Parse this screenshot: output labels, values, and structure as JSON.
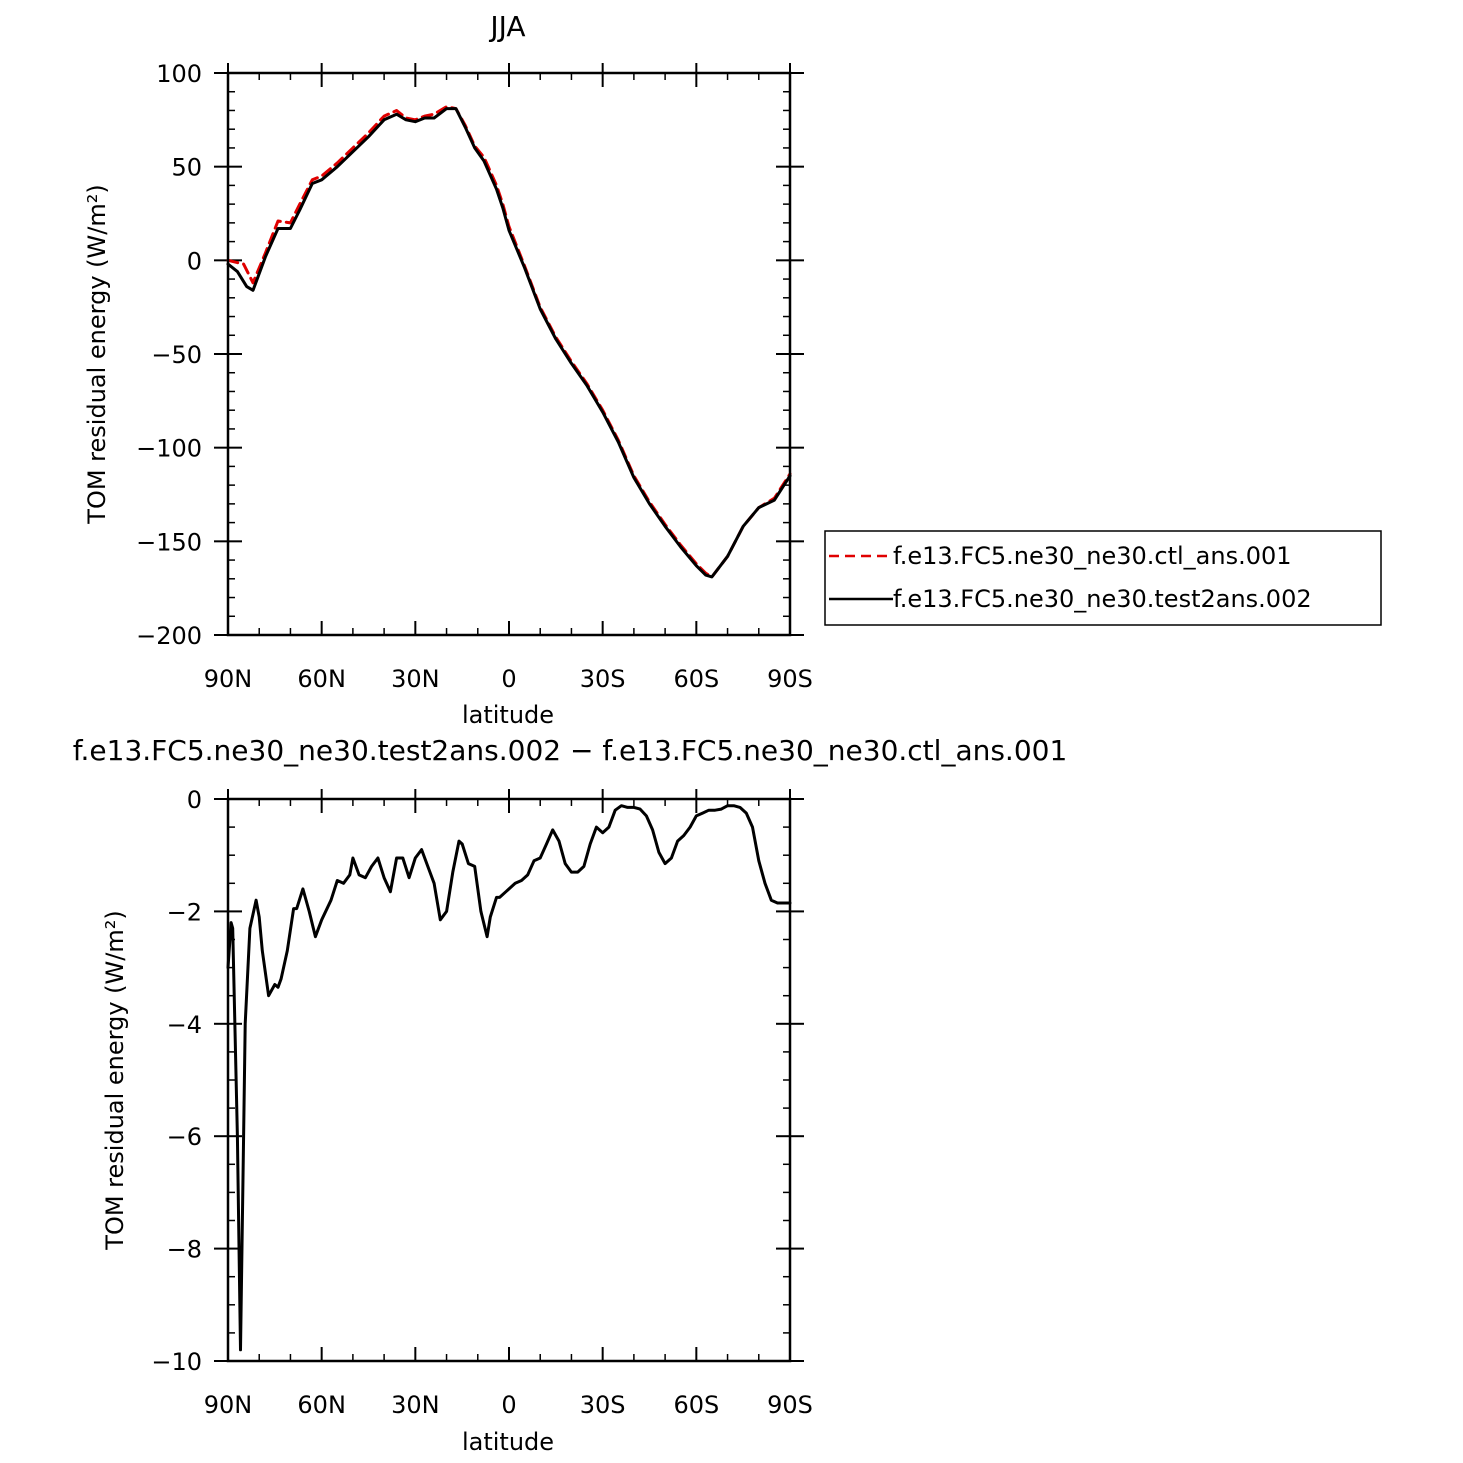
{
  "chart_data": [
    {
      "type": "line",
      "title": "JJA",
      "xlabel": "latitude",
      "ylabel": "TOM residual energy (W/m²)",
      "xlim": [
        90,
        -90
      ],
      "ylim": [
        -200,
        100
      ],
      "xticks": [
        90,
        60,
        30,
        0,
        -30,
        -60,
        -90
      ],
      "xtick_labels": [
        "90N",
        "60N",
        "30N",
        "0",
        "30S",
        "60S",
        "90S"
      ],
      "yticks": [
        100,
        50,
        0,
        -50,
        -100,
        -150,
        -200
      ],
      "ytick_labels": [
        "100",
        "50",
        "0",
        "−50",
        "−100",
        "−150",
        "−200"
      ],
      "legend_position": "right-middle",
      "series": [
        {
          "name": "f.e13.FC5.ne30_ne30.ctl_ans.001",
          "color": "#e00000",
          "dash": "dashed",
          "x": [
            90,
            85,
            82,
            78,
            74,
            70,
            67,
            63,
            60,
            55,
            50,
            45,
            40,
            36,
            33,
            30,
            27,
            24,
            20,
            17,
            14,
            11,
            8,
            4,
            2,
            0,
            -5,
            -10,
            -15,
            -20,
            -25,
            -30,
            -35,
            -40,
            -45,
            -50,
            -55,
            -60,
            -63,
            -65,
            -70,
            -75,
            -80,
            -85,
            -90
          ],
          "y": [
            0,
            -2,
            -12,
            4,
            21,
            20,
            30,
            43,
            45,
            52,
            60,
            68,
            77,
            80,
            76,
            75,
            77,
            78,
            82,
            81,
            72,
            61,
            55,
            40,
            30,
            18,
            -3,
            -25,
            -41,
            -54,
            -66,
            -80,
            -96,
            -115,
            -129,
            -141,
            -152,
            -162,
            -167,
            -169,
            -158,
            -142,
            -132,
            -127,
            -114
          ]
        },
        {
          "name": "f.e13.FC5.ne30_ne30.test2ans.002",
          "color": "#000000",
          "dash": "solid",
          "x": [
            90,
            87,
            84,
            82,
            78,
            74,
            70,
            67,
            63,
            60,
            55,
            50,
            45,
            40,
            36,
            33,
            30,
            27,
            24,
            20,
            17,
            14,
            11,
            8,
            4,
            2,
            0,
            -5,
            -10,
            -15,
            -20,
            -25,
            -30,
            -35,
            -40,
            -45,
            -50,
            -55,
            -60,
            -63,
            -65,
            -70,
            -75,
            -80,
            -85,
            -90
          ],
          "y": [
            -2,
            -6,
            -14,
            -16,
            2,
            17,
            17,
            27,
            41,
            43,
            50,
            58,
            66,
            75,
            78,
            75,
            74,
            76,
            76,
            81,
            81,
            71,
            60,
            53,
            38,
            28,
            16,
            -4,
            -26,
            -42,
            -55,
            -67,
            -81,
            -97,
            -116,
            -130,
            -142,
            -153,
            -163,
            -168,
            -169,
            -158,
            -142,
            -132,
            -128,
            -115
          ]
        }
      ]
    },
    {
      "type": "line",
      "title": "f.e13.FC5.ne30_ne30.test2ans.002 − f.e13.FC5.ne30_ne30.ctl_ans.001",
      "xlabel": "latitude",
      "ylabel": "TOM residual energy (W/m²)",
      "xlim": [
        90,
        -90
      ],
      "ylim": [
        -10,
        0
      ],
      "xticks": [
        90,
        60,
        30,
        0,
        -30,
        -60,
        -90
      ],
      "xtick_labels": [
        "90N",
        "60N",
        "30N",
        "0",
        "30S",
        "60S",
        "90S"
      ],
      "yticks": [
        0,
        -2,
        -4,
        -6,
        -8,
        -10
      ],
      "ytick_labels": [
        "0",
        "−2",
        "−4",
        "−6",
        "−8",
        "−10"
      ],
      "series": [
        {
          "color": "#000000",
          "dash": "solid",
          "x": [
            90,
            89,
            88.5,
            87,
            86,
            85,
            84.5,
            83,
            81,
            80,
            79,
            77,
            75,
            74,
            73,
            71,
            69,
            68,
            66,
            64,
            62,
            60,
            57,
            55,
            53,
            51,
            50,
            48,
            46,
            44,
            42,
            40,
            38,
            36,
            34,
            32,
            30,
            28,
            26,
            24,
            22,
            20,
            18,
            16,
            15,
            13,
            11,
            9,
            7,
            6,
            4,
            3,
            1,
            0,
            -2,
            -4,
            -6,
            -8,
            -10,
            -12,
            -14,
            -16,
            -18,
            -20,
            -22,
            -24,
            -26,
            -28,
            -30,
            -32,
            -34,
            -36,
            -38,
            -40,
            -42,
            -44,
            -46,
            -48,
            -50,
            -52,
            -54,
            -56,
            -58,
            -60,
            -62,
            -64,
            -66,
            -68,
            -70,
            -72,
            -74,
            -76,
            -78,
            -80,
            -82,
            -84,
            -86,
            -88,
            -90
          ],
          "y": [
            -3,
            -2.2,
            -2.3,
            -6,
            -9.8,
            -6,
            -4,
            -2.3,
            -1.8,
            -2.1,
            -2.7,
            -3.5,
            -3.3,
            -3.35,
            -3.2,
            -2.7,
            -1.95,
            -1.95,
            -1.6,
            -2.0,
            -2.45,
            -2.15,
            -1.8,
            -1.45,
            -1.5,
            -1.35,
            -1.05,
            -1.35,
            -1.4,
            -1.2,
            -1.05,
            -1.4,
            -1.65,
            -1.05,
            -1.05,
            -1.4,
            -1.05,
            -0.9,
            -1.2,
            -1.5,
            -2.15,
            -2.0,
            -1.3,
            -0.75,
            -0.8,
            -1.15,
            -1.2,
            -2.0,
            -2.45,
            -2.1,
            -1.75,
            -1.75,
            -1.65,
            -1.6,
            -1.5,
            -1.45,
            -1.35,
            -1.1,
            -1.05,
            -0.8,
            -0.55,
            -0.75,
            -1.15,
            -1.3,
            -1.3,
            -1.2,
            -0.8,
            -0.5,
            -0.6,
            -0.5,
            -0.2,
            -0.12,
            -0.15,
            -0.15,
            -0.18,
            -0.3,
            -0.55,
            -0.95,
            -1.15,
            -1.05,
            -0.75,
            -0.65,
            -0.5,
            -0.3,
            -0.25,
            -0.2,
            -0.2,
            -0.18,
            -0.12,
            -0.12,
            -0.15,
            -0.25,
            -0.5,
            -1.1,
            -1.5,
            -1.8,
            -1.85,
            -1.85,
            -1.85
          ]
        }
      ]
    }
  ]
}
